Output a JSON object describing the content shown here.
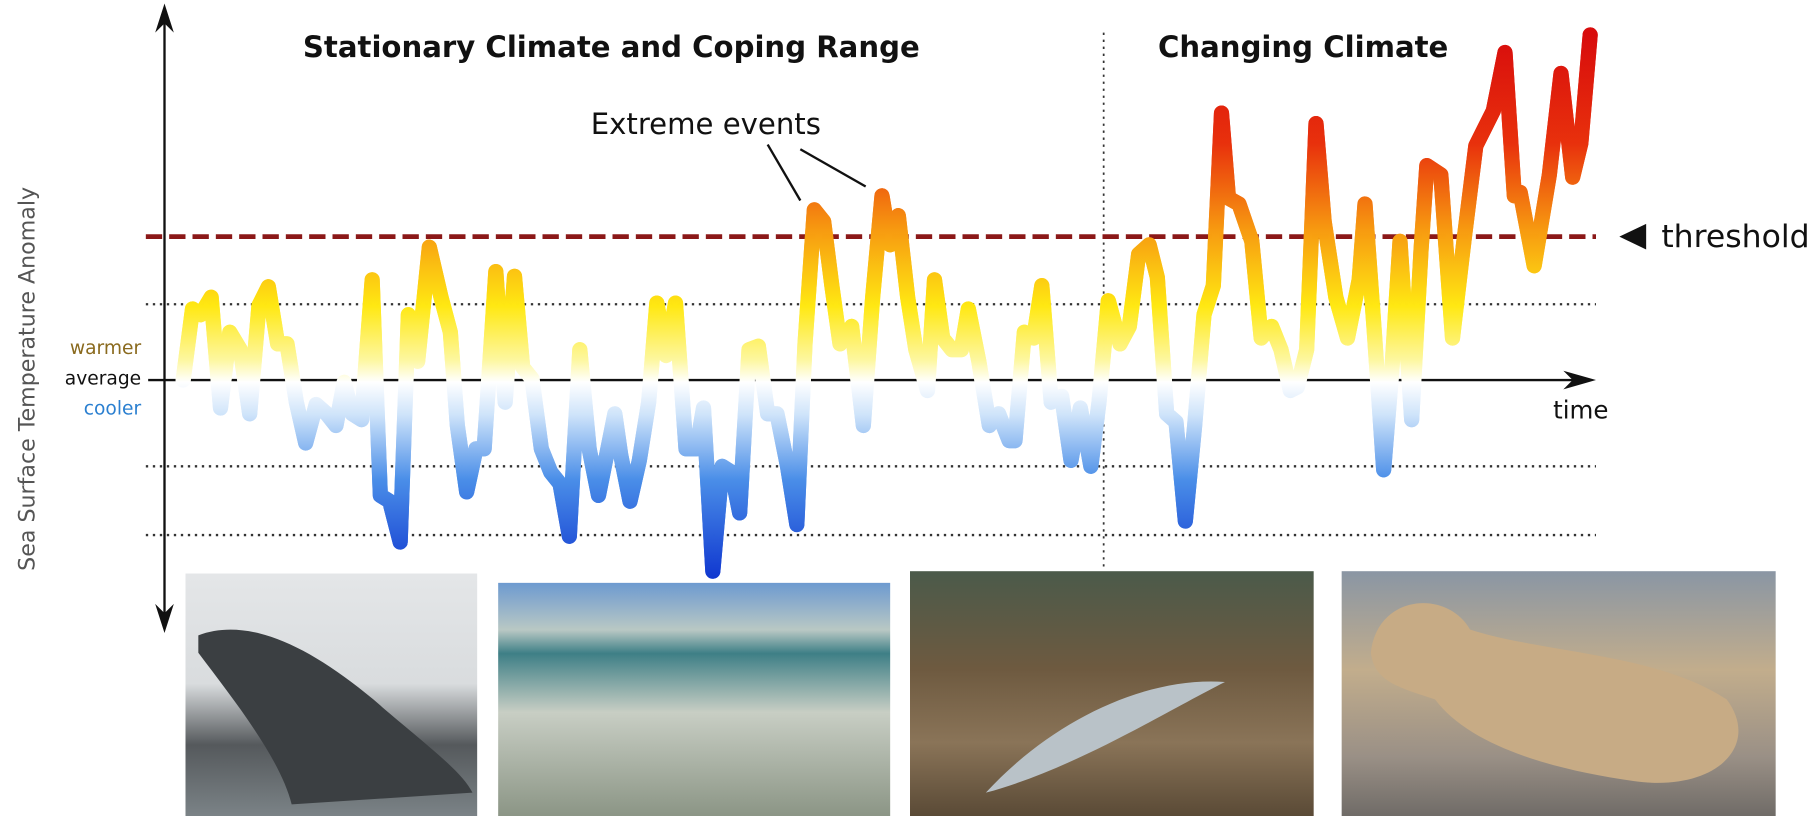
{
  "panels": {
    "stationary": "Stationary Climate and Coping Range",
    "changing": "Changing Climate"
  },
  "annotation": "Extreme events",
  "threshold_label": "threshold",
  "x_axis_label": "time",
  "y_axis_label": "Sea Surface Temperature Anomaly",
  "levels": {
    "warmer": "warmer",
    "average": "average",
    "cooler": "cooler"
  }
}
